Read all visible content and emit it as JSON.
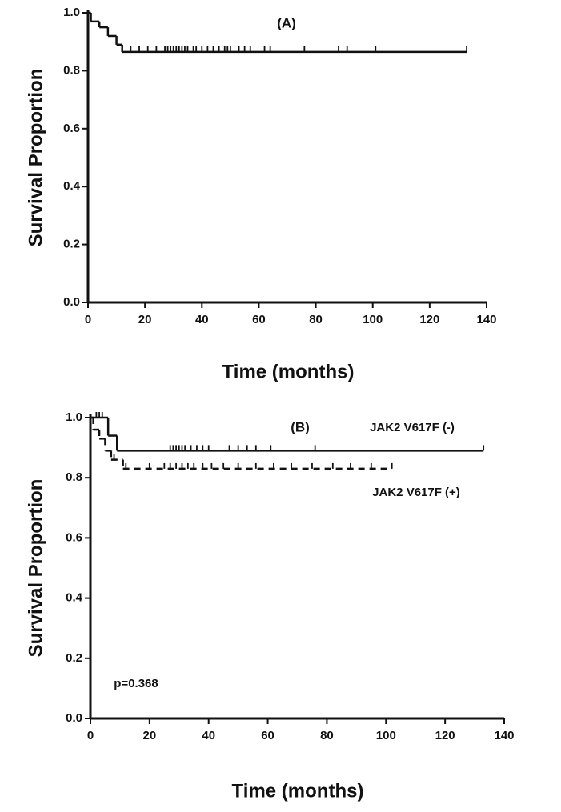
{
  "chart_data": [
    {
      "type": "step",
      "title": "(A)",
      "x_label": "Time (months)",
      "y_label": "Survival Proportion",
      "xlim": [
        0,
        140
      ],
      "xticks": [
        0,
        20,
        40,
        60,
        80,
        100,
        120,
        140
      ],
      "ylim": [
        0,
        1.0
      ],
      "yticks": [
        {
          "value": 0,
          "label": "0.0"
        },
        {
          "value": 0.2,
          "label": "0.2"
        },
        {
          "value": 0.4,
          "label": "0.4"
        },
        {
          "value": 0.6,
          "label": "0.6"
        },
        {
          "value": 0.8,
          "label": "0.8"
        },
        {
          "value": 1.0,
          "label": "1.0"
        }
      ],
      "series": [
        {
          "color": "#111111",
          "dash": false,
          "x": [
            0,
            1,
            4,
            7,
            10,
            12,
            133
          ],
          "values": [
            1.0,
            0.97,
            0.95,
            0.92,
            0.89,
            0.865,
            0.865
          ],
          "censored": [
            15,
            18,
            21,
            24,
            27,
            28,
            29,
            30,
            31,
            32,
            33,
            34,
            35,
            37,
            38,
            40,
            42,
            44,
            46,
            48,
            49,
            50,
            53,
            55,
            57,
            62,
            64,
            76,
            88,
            91,
            101,
            133
          ]
        }
      ]
    },
    {
      "type": "step",
      "title": "(B)",
      "x_label": "Time (months)",
      "y_label": "Survival Proportion",
      "xlim": [
        0,
        140
      ],
      "xticks": [
        0,
        20,
        40,
        60,
        80,
        100,
        120,
        140
      ],
      "ylim": [
        0,
        1.0
      ],
      "yticks": [
        {
          "value": 0,
          "label": "0.0"
        },
        {
          "value": 0.2,
          "label": "0.2"
        },
        {
          "value": 0.4,
          "label": "0.4"
        },
        {
          "value": 0.6,
          "label": "0.6"
        },
        {
          "value": 0.8,
          "label": "0.8"
        },
        {
          "value": 1.0,
          "label": "1.0"
        }
      ],
      "annotations": [
        {
          "text": "p=0.368"
        }
      ],
      "series": [
        {
          "name": "JAK2 V617F (-)",
          "color": "#111111",
          "dash": false,
          "x": [
            0,
            6,
            9,
            133
          ],
          "values": [
            1.0,
            0.94,
            0.89,
            0.89
          ],
          "censored": [
            2,
            3,
            4,
            27,
            28,
            29,
            30,
            31,
            32,
            34,
            36,
            38,
            40,
            47,
            50,
            53,
            56,
            61,
            76,
            133
          ]
        },
        {
          "name": "JAK2 V617F (+)",
          "color": "#111111",
          "dash": true,
          "x": [
            0,
            1,
            3,
            5,
            7,
            11,
            102
          ],
          "values": [
            1.0,
            0.96,
            0.93,
            0.89,
            0.86,
            0.83,
            0.83
          ],
          "censored": [
            8,
            12,
            20,
            25,
            27,
            29,
            31,
            33,
            35,
            38,
            41,
            45,
            50,
            56,
            62,
            68,
            75,
            82,
            88,
            95,
            102
          ]
        }
      ]
    }
  ]
}
